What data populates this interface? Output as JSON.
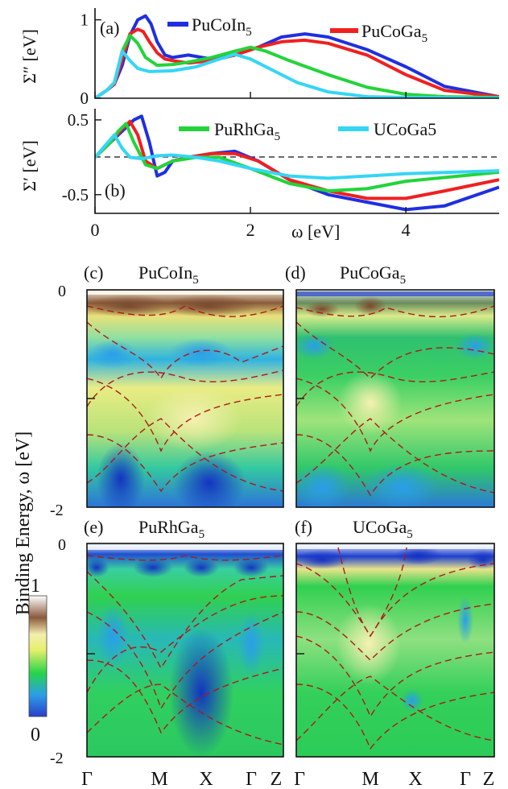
{
  "figure": {
    "colorbar": {
      "max_label": "1",
      "min_label": "0",
      "colors": [
        "#2a3fc9",
        "#2b9ee8",
        "#27d44a",
        "#e6ef6a",
        "#f3eeb0",
        "#8a5a3c",
        "#ffffff"
      ]
    },
    "shared_ylabel": "Binding Energy, ω [eV]",
    "kpath": [
      "Γ",
      "M",
      "X",
      "Γ",
      "Z"
    ]
  },
  "chart_data": [
    {
      "type": "line",
      "panel": "(a)",
      "ylabel": "Σ″ [eV]",
      "xlim": [
        0,
        5.2
      ],
      "ylim": [
        0,
        1.15
      ],
      "yticks": [
        "0",
        "1"
      ],
      "series": [
        {
          "name": "PuCoIn5",
          "name_text": "PuCoIn",
          "name_sub": "5",
          "color": "#1f2fe0",
          "x": [
            0,
            0.15,
            0.25,
            0.35,
            0.45,
            0.55,
            0.65,
            0.72,
            0.8,
            0.9,
            1.0,
            1.2,
            1.5,
            1.8,
            2.1,
            2.4,
            2.7,
            3.0,
            3.5,
            4.0,
            4.5,
            5.2
          ],
          "y": [
            0,
            0.1,
            0.18,
            0.42,
            0.8,
            1.0,
            1.05,
            0.95,
            0.72,
            0.55,
            0.52,
            0.55,
            0.5,
            0.55,
            0.65,
            0.78,
            0.82,
            0.78,
            0.62,
            0.4,
            0.15,
            0.02
          ]
        },
        {
          "name": "PuCoGa5",
          "name_text": "PuCoGa",
          "name_sub": "5",
          "color": "#f02020",
          "x": [
            0,
            0.15,
            0.25,
            0.35,
            0.45,
            0.55,
            0.62,
            0.7,
            0.8,
            0.9,
            1.0,
            1.2,
            1.5,
            1.8,
            2.1,
            2.4,
            2.7,
            3.0,
            3.5,
            4.0,
            4.5,
            5.2
          ],
          "y": [
            0,
            0.1,
            0.18,
            0.5,
            0.82,
            0.88,
            0.85,
            0.72,
            0.58,
            0.5,
            0.48,
            0.45,
            0.48,
            0.55,
            0.65,
            0.72,
            0.74,
            0.7,
            0.55,
            0.3,
            0.1,
            0.02
          ]
        },
        {
          "name": "PuRhGa5",
          "name_text": "PuRhGa",
          "name_sub": "5",
          "color": "#22d43a",
          "x": [
            0,
            0.15,
            0.25,
            0.35,
            0.45,
            0.55,
            0.65,
            0.8,
            1.0,
            1.2,
            1.5,
            1.8,
            2.0,
            2.2,
            2.5,
            3.0,
            3.5,
            4.0,
            4.5,
            5.2
          ],
          "y": [
            0,
            0.1,
            0.2,
            0.6,
            0.8,
            0.7,
            0.52,
            0.42,
            0.43,
            0.46,
            0.52,
            0.6,
            0.65,
            0.6,
            0.48,
            0.3,
            0.14,
            0.05,
            0.02,
            0.01
          ]
        },
        {
          "name": "UCoGa5",
          "name_text": "UCoGa5",
          "name_sub": "",
          "color": "#35d6f4",
          "x": [
            0,
            0.15,
            0.25,
            0.35,
            0.45,
            0.55,
            0.7,
            1.0,
            1.3,
            1.6,
            1.8,
            2.0,
            2.3,
            2.6,
            3.0,
            3.5,
            4.0,
            5.2
          ],
          "y": [
            0,
            0.1,
            0.2,
            0.6,
            0.48,
            0.38,
            0.34,
            0.35,
            0.4,
            0.5,
            0.56,
            0.5,
            0.35,
            0.2,
            0.08,
            0.02,
            0.01,
            0.0
          ]
        }
      ]
    },
    {
      "type": "line",
      "panel": "(b)",
      "ylabel": "Σ′ [eV]",
      "xlabel": "ω [eV]",
      "xlim": [
        0,
        5.2
      ],
      "ylim": [
        -0.75,
        0.65
      ],
      "xticks": [
        "0",
        "2",
        "4"
      ],
      "yticks": [
        "0.5",
        "-0.5"
      ],
      "reference_line": 0,
      "series": [
        {
          "name": "PuCoIn5",
          "color": "#1f2fe0",
          "x": [
            0,
            0.2,
            0.35,
            0.5,
            0.6,
            0.7,
            0.8,
            0.9,
            1.0,
            1.2,
            1.5,
            1.8,
            2.1,
            2.5,
            3.0,
            3.5,
            4.0,
            4.5,
            5.2
          ],
          "y": [
            0,
            0.2,
            0.35,
            0.5,
            0.55,
            0.2,
            -0.25,
            -0.2,
            -0.05,
            0.0,
            0.05,
            0.08,
            -0.05,
            -0.3,
            -0.5,
            -0.6,
            -0.7,
            -0.65,
            -0.4
          ]
        },
        {
          "name": "PuCoGa5",
          "color": "#f02020",
          "x": [
            0,
            0.2,
            0.35,
            0.45,
            0.55,
            0.65,
            0.8,
            1.0,
            1.2,
            1.5,
            1.8,
            2.1,
            2.5,
            3.0,
            3.5,
            4.0,
            4.5,
            5.2
          ],
          "y": [
            0,
            0.2,
            0.38,
            0.48,
            0.3,
            -0.05,
            -0.15,
            -0.05,
            0.0,
            0.05,
            0.05,
            -0.05,
            -0.3,
            -0.45,
            -0.55,
            -0.55,
            -0.45,
            -0.3
          ]
        },
        {
          "name": "PuRhGa5",
          "color": "#22d43a",
          "x": [
            0,
            0.2,
            0.3,
            0.4,
            0.5,
            0.65,
            0.8,
            1.0,
            1.3,
            1.6,
            2.0,
            2.5,
            3.0,
            3.5,
            4.0,
            5.2
          ],
          "y": [
            0,
            0.2,
            0.35,
            0.45,
            0.2,
            -0.1,
            -0.15,
            -0.05,
            0.0,
            0.0,
            -0.15,
            -0.35,
            -0.45,
            -0.42,
            -0.32,
            -0.2
          ]
        },
        {
          "name": "UCoGa5",
          "color": "#35d6f4",
          "x": [
            0,
            0.15,
            0.25,
            0.35,
            0.45,
            0.6,
            0.8,
            1.0,
            1.3,
            1.6,
            2.0,
            2.5,
            3.0,
            3.5,
            4.0,
            5.2
          ],
          "y": [
            0,
            0.18,
            0.3,
            0.12,
            0.0,
            -0.02,
            0.02,
            0.03,
            0.0,
            -0.05,
            -0.15,
            -0.25,
            -0.28,
            -0.25,
            -0.22,
            -0.18
          ]
        }
      ]
    },
    {
      "type": "heatmap",
      "panel": "(c)",
      "title": "PuCoIn5",
      "title_text": "PuCoIn",
      "title_sub": "5",
      "kpath": [
        "Γ",
        "M",
        "X",
        "Γ",
        "Z"
      ],
      "ylim": [
        -2,
        0
      ],
      "yticks": [
        "0",
        "-2"
      ],
      "colorbar_range": [
        0,
        1
      ]
    },
    {
      "type": "heatmap",
      "panel": "(d)",
      "title": "PuCoGa5",
      "title_text": "PuCoGa",
      "title_sub": "5",
      "kpath": [
        "Γ",
        "M",
        "X",
        "Γ",
        "Z"
      ],
      "ylim": [
        -2,
        0
      ],
      "colorbar_range": [
        0,
        1
      ]
    },
    {
      "type": "heatmap",
      "panel": "(e)",
      "title": "PuRhGa5",
      "title_text": "PuRhGa",
      "title_sub": "5",
      "kpath": [
        "Γ",
        "M",
        "X",
        "Γ",
        "Z"
      ],
      "ylim": [
        -2,
        0
      ],
      "yticks": [
        "0",
        "-2"
      ],
      "colorbar_range": [
        0,
        1
      ]
    },
    {
      "type": "heatmap",
      "panel": "(f)",
      "title": "UCoGa5",
      "title_text": "UCoGa",
      "title_sub": "5",
      "kpath": [
        "Γ",
        "M",
        "X",
        "Γ",
        "Z"
      ],
      "ylim": [
        -2,
        0
      ],
      "colorbar_range": [
        0,
        1
      ]
    }
  ]
}
